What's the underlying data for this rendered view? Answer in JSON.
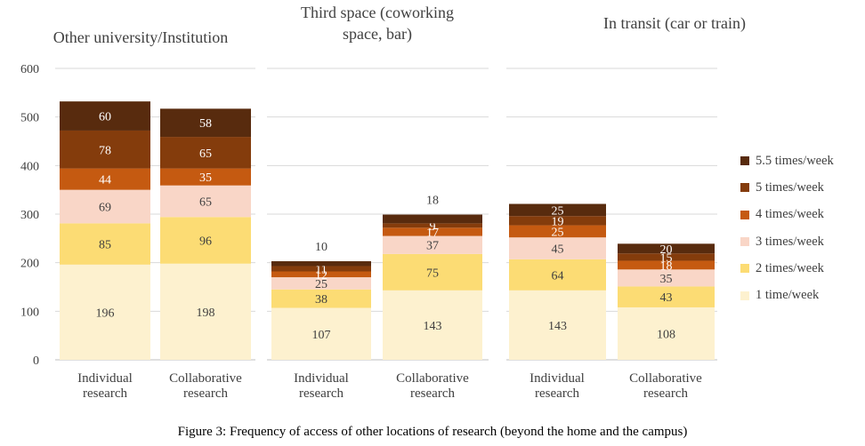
{
  "figure_caption": "Figure 3: Frequency of access of other locations of research (beyond the home and the campus)",
  "colors": {
    "1 time/week": "#FDF1CF",
    "2 times/week": "#FCDC74",
    "3 times/week": "#F9D6C7",
    "4 times/week": "#C55A11",
    "5 times/week": "#843C0C",
    "5.5 times/week": "#582B0E"
  },
  "chart_data": {
    "type": "bar",
    "stacked": true,
    "y_ticks": [
      0,
      100,
      200,
      300,
      400,
      500,
      600
    ],
    "ylim": [
      0,
      600
    ],
    "grid": true,
    "legend_position": "right",
    "legend": [
      "5.5 times/week",
      "5 times/week",
      "4 times/week",
      "3 times/week",
      "2 times/week",
      "1 time/week"
    ],
    "panels": [
      {
        "title": "Other university/Institution",
        "categories": [
          "Individual research",
          "Collaborative research"
        ],
        "series": [
          {
            "name": "1 time/week",
            "values": [
              196,
              198
            ]
          },
          {
            "name": "2 times/week",
            "values": [
              85,
              96
            ]
          },
          {
            "name": "3 times/week",
            "values": [
              69,
              65
            ]
          },
          {
            "name": "4 times/week",
            "values": [
              44,
              35
            ]
          },
          {
            "name": "5 times/week",
            "values": [
              78,
              65
            ]
          },
          {
            "name": "5.5 times/week",
            "values": [
              60,
              58
            ]
          }
        ]
      },
      {
        "title": "Third space (coworking space, bar)",
        "categories": [
          "Individual research",
          "Collaborative research"
        ],
        "series": [
          {
            "name": "1 time/week",
            "values": [
              107,
              143
            ]
          },
          {
            "name": "2 times/week",
            "values": [
              38,
              75
            ]
          },
          {
            "name": "3 times/week",
            "values": [
              25,
              37
            ]
          },
          {
            "name": "4 times/week",
            "values": [
              12,
              17
            ]
          },
          {
            "name": "5 times/week",
            "values": [
              11,
              9
            ]
          },
          {
            "name": "5.5 times/week",
            "values": [
              10,
              18
            ]
          }
        ]
      },
      {
        "title": "In transit (car or train)",
        "categories": [
          "Individual research",
          "Collaborative research"
        ],
        "series": [
          {
            "name": "1 time/week",
            "values": [
              143,
              108
            ]
          },
          {
            "name": "2 times/week",
            "values": [
              64,
              43
            ]
          },
          {
            "name": "3 times/week",
            "values": [
              45,
              35
            ]
          },
          {
            "name": "4 times/week",
            "values": [
              25,
              18
            ]
          },
          {
            "name": "5 times/week",
            "values": [
              19,
              15
            ]
          },
          {
            "name": "5.5 times/week",
            "values": [
              25,
              20
            ]
          }
        ]
      }
    ]
  }
}
